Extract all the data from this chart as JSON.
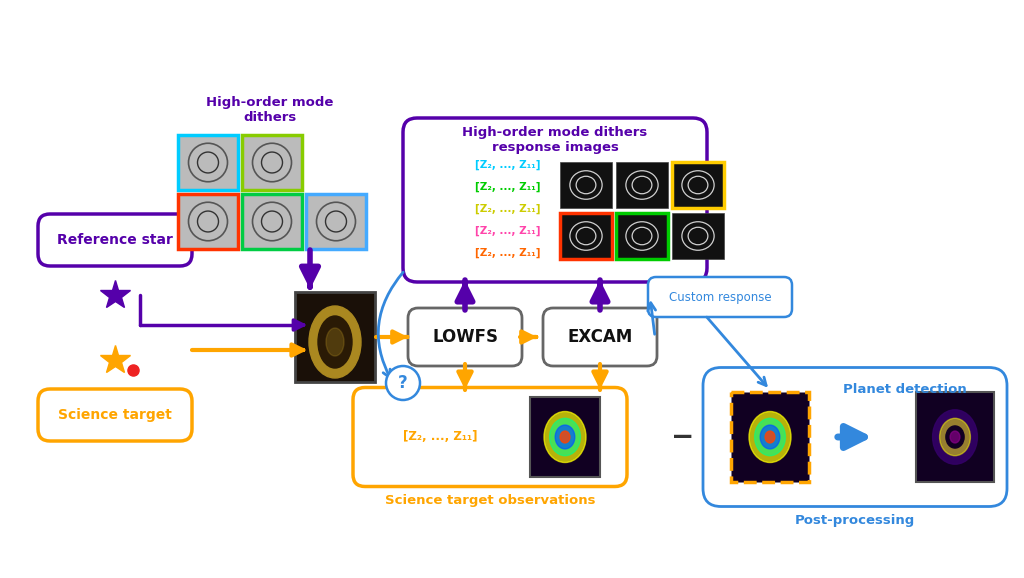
{
  "bg_color": "#ffffff",
  "purple": "#5500AA",
  "orange": "#FFA500",
  "blue": "#2255CC",
  "blue_light": "#3388DD",
  "red": "#EE2222",
  "ref_star_label": "Reference star",
  "sci_target_label": "Science target",
  "lowfs_label": "LOWFS",
  "excam_label": "EXCAM",
  "hi_dithers_label": "High-order mode\ndithers",
  "hi_response_label": "High-order mode dithers\nresponse images",
  "sci_obs_label": "Science target observations",
  "post_proc_label": "Post-processing",
  "planet_label": "Planet detection",
  "custom_resp_label": "Custom response",
  "z_labels": [
    "[Z₂, ..., Z₁₁]",
    "[Z₂, ..., Z₁₁]",
    "[Z₂, ..., Z₁₁]",
    "[Z₂, ..., Z₁₁]",
    "[Z₂, ..., Z₁₁]"
  ],
  "z_colors": [
    "#00CCFF",
    "#00CC00",
    "#CCCC00",
    "#FF44AA",
    "#FF6600"
  ],
  "sci_z_label": "[Z₂, ..., Z₁₁]",
  "dith_grid_colors_row0": [
    "#00CCFF",
    "#88CC00",
    "#FFCC00"
  ],
  "dith_grid_colors_row1": [
    "#FF3300",
    "#00CC44",
    "#44AAFF"
  ],
  "resp_grid_colors": [
    "#FFCC00",
    "#00CC00",
    "#FF4400",
    "#44AAFF"
  ]
}
